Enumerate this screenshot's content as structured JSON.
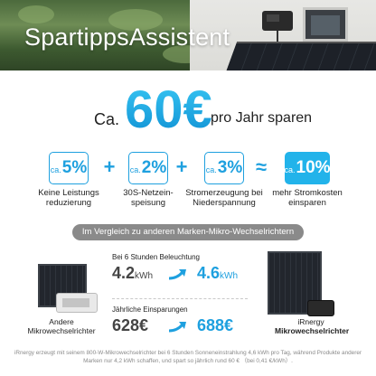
{
  "hero": {
    "title": "SpartippsAssistent"
  },
  "headline": {
    "prefix": "Ca.",
    "amount": "60€",
    "suffix": "pro Jahr sparen"
  },
  "stats": [
    {
      "prefix": "ca.",
      "value": "5%",
      "caption": "Keine Leistungs\nreduzierung"
    },
    {
      "prefix": "ca.",
      "value": "2%",
      "caption": "30S-Netzein-\nspeisung"
    },
    {
      "prefix": "ca.",
      "value": "3%",
      "caption": "Stromerzeugung bei\nNiederspannung"
    },
    {
      "prefix": "ca.",
      "value": "10%",
      "caption": "mehr Stromkosten\neinsparen"
    }
  ],
  "operators": {
    "plus": "+",
    "approx": "≈"
  },
  "banner": "Im Vergleich zu anderen Marken-Mikro-Wechselrichtern",
  "products": {
    "other": {
      "line1": "Andere",
      "line2": "Mikrowechselrichter"
    },
    "irnergy": {
      "line1": "iRnergy",
      "line2": "Mikrowechselrichter"
    }
  },
  "comparison": {
    "generation": {
      "label": "Bei 6 Stunden Beleuchtung",
      "old_value": "4.2",
      "old_unit": "kWh",
      "new_value": "4.6",
      "new_unit": "kWh"
    },
    "savings": {
      "label": "Jährliche Einsparungen",
      "old_value": "628€",
      "new_value": "688€"
    }
  },
  "footnote": "iRnergy erzeugt mit seinem 800-W-Mikrowechselrichter bei 6 Stunden Sonneneinstrahlung 4,6 kWh pro Tag, während Produkte anderer Marken nur 4,2 kWh schaffen, und spart so jährlich rund 60 € （bei 0,41 €/kWh）.",
  "colors": {
    "accent": "#1ea0df",
    "banner": "#8a8a8a"
  },
  "icons": [
    "arrow-up-right-icon"
  ]
}
